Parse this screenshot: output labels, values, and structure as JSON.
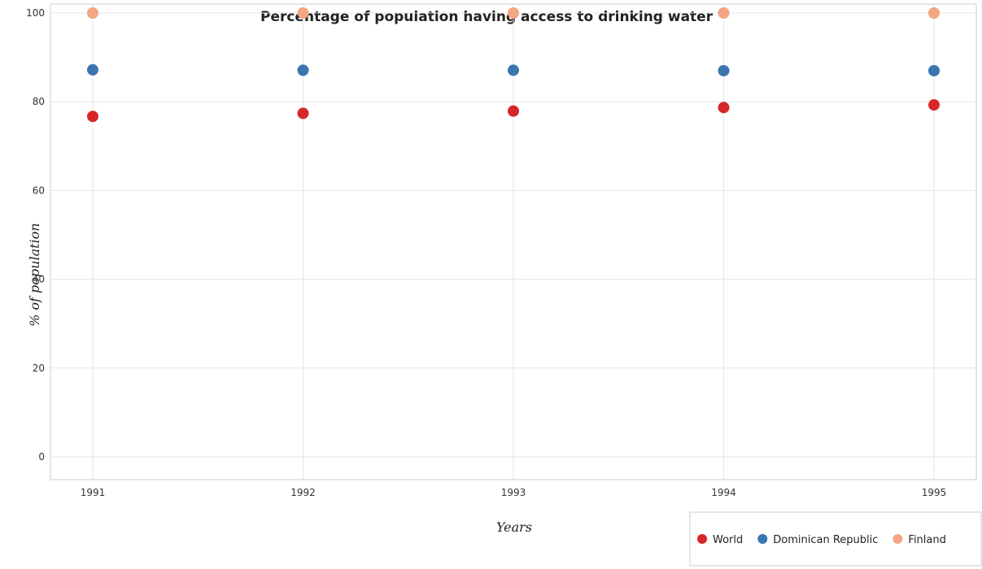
{
  "chart_data": {
    "type": "scatter",
    "title": "Percentage of population having access to drinking water",
    "xlabel": "Years",
    "ylabel": "% of population",
    "categories": [
      "1991",
      "1992",
      "1993",
      "1994",
      "1995"
    ],
    "ylim": [
      0,
      100
    ],
    "yticks": [
      0,
      20,
      40,
      60,
      80,
      100
    ],
    "grid": true,
    "legend_position": "bottom-right",
    "series": [
      {
        "name": "World",
        "color": "#d62728",
        "values": [
          76.7,
          77.4,
          77.9,
          78.7,
          79.3
        ]
      },
      {
        "name": "Dominican Republic",
        "color": "#3a75b0",
        "values": [
          87.2,
          87.1,
          87.1,
          87.0,
          87.0
        ]
      },
      {
        "name": "Finland",
        "color": "#f4a582",
        "values": [
          100,
          100,
          100,
          100,
          100
        ]
      }
    ]
  }
}
